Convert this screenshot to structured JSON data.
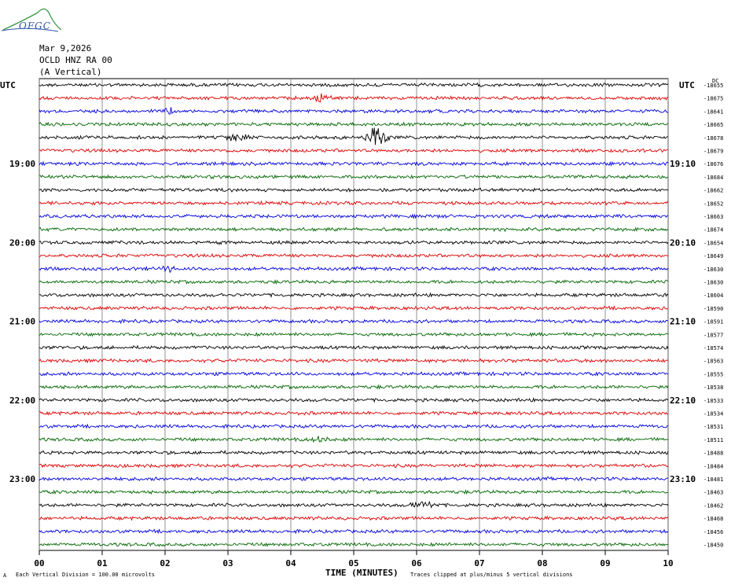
{
  "header": {
    "logo_text": "OFGC",
    "date": "Mar 9,2026",
    "station": "OCLD HNZ RA 00",
    "component": "(A Vertical)"
  },
  "footer": {
    "scale_note": "Each Vertical Division =  100.00 microvolts",
    "clip_note": "Traces clipped at plus/minus 5 vertical divisions",
    "corner_mark": "A"
  },
  "chart_data": {
    "type": "line",
    "title": "",
    "xlabel": "TIME (MINUTES)",
    "xlim": [
      0,
      10
    ],
    "x_ticks": [
      "00",
      "01",
      "02",
      "03",
      "04",
      "05",
      "06",
      "07",
      "08",
      "09",
      "10"
    ],
    "left_axis_label": "UTC",
    "right_axis_label": "UTC",
    "right_top_label": "DC",
    "left_hour_labels": [
      {
        "row": 6,
        "text": "19:00"
      },
      {
        "row": 12,
        "text": "20:00"
      },
      {
        "row": 18,
        "text": "21:00"
      },
      {
        "row": 24,
        "text": "22:00"
      },
      {
        "row": 30,
        "text": "23:00"
      }
    ],
    "right_hour_labels": [
      {
        "row": 6,
        "text": "19:10"
      },
      {
        "row": 12,
        "text": "20:10"
      },
      {
        "row": 18,
        "text": "21:10"
      },
      {
        "row": 24,
        "text": "22:10"
      },
      {
        "row": 30,
        "text": "23:10"
      }
    ],
    "trace_colors": [
      "#000000",
      "#dd0000",
      "#0000dd",
      "#006600"
    ],
    "dc_offsets": [
      -18655,
      -18675,
      -18641,
      -18665,
      -18678,
      -18679,
      -18676,
      -18684,
      -18662,
      -18652,
      -18663,
      -18674,
      -18654,
      -18649,
      -18630,
      -18630,
      -18604,
      -18590,
      -18591,
      -18577,
      -18574,
      -18563,
      -18555,
      -18538,
      -18533,
      -18534,
      -18531,
      -18511,
      -18488,
      -18484,
      -18481,
      -18463,
      -18462,
      -18468,
      -18456,
      -18450
    ],
    "events": [
      {
        "row": 4,
        "minute": 5.35,
        "amplitude": 3.0
      },
      {
        "row": 4,
        "minute": 3.15,
        "amplitude": 1.4
      },
      {
        "row": 1,
        "minute": 4.47,
        "amplitude": 1.3
      },
      {
        "row": 2,
        "minute": 2.08,
        "amplitude": 1.1
      },
      {
        "row": 32,
        "minute": 6.1,
        "amplitude": 1.2
      },
      {
        "row": 14,
        "minute": 2.0,
        "amplitude": 0.9
      },
      {
        "row": 27,
        "minute": 4.45,
        "amplitude": 0.9
      }
    ]
  }
}
